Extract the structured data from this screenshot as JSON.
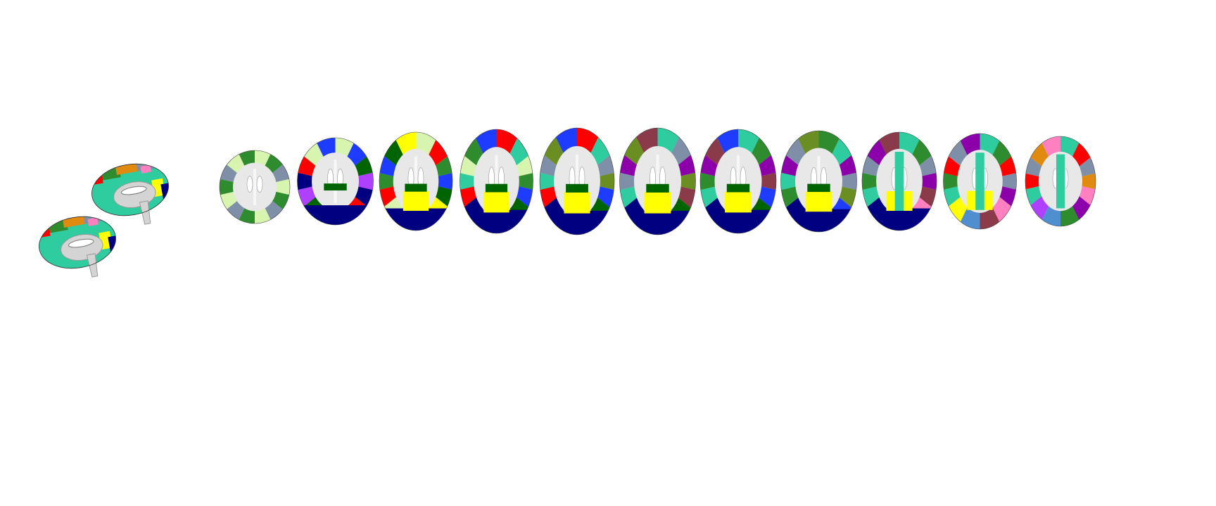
{
  "figure": {
    "background": "#ffffff",
    "brain_gray": "#d4d4d4",
    "brain_outline": "#9a9a9a",
    "atlas_palette": {
      "navy": "#000080",
      "yellow": "#ffff00",
      "teal": "#2ecc9e",
      "red": "#ff0000",
      "green": "#2e8b2e",
      "dark_green": "#006400",
      "olive": "#6b8e23",
      "slate": "#7f8fa8",
      "blue": "#1e3cff",
      "violet": "#b040ff",
      "purple": "#8b00a8",
      "maroon": "#8b3a4a",
      "light_green": "#d8f5b0",
      "orange": "#e08a10",
      "pink": "#ff80c0",
      "steel_blue": "#4f8fd0"
    },
    "sagittal_views": [
      {
        "name": "sagittal-upper"
      },
      {
        "name": "sagittal-lower"
      }
    ],
    "axial_slices": [
      {
        "name": "slice-1",
        "colors": [
          "light_green",
          "green",
          "slate"
        ]
      },
      {
        "name": "slice-2",
        "colors": [
          "light_green",
          "blue",
          "dark_green",
          "violet",
          "navy",
          "red"
        ]
      },
      {
        "name": "slice-3",
        "colors": [
          "light_green",
          "red",
          "green",
          "blue",
          "dark_green",
          "yellow",
          "violet",
          "navy"
        ]
      },
      {
        "name": "slice-4",
        "colors": [
          "red",
          "teal",
          "light_green",
          "green",
          "blue",
          "dark_green",
          "yellow",
          "violet",
          "navy"
        ]
      },
      {
        "name": "slice-5",
        "colors": [
          "red",
          "teal",
          "slate",
          "olive",
          "blue",
          "dark_green",
          "yellow",
          "violet",
          "navy"
        ]
      },
      {
        "name": "slice-6",
        "colors": [
          "teal",
          "slate",
          "purple",
          "olive",
          "maroon",
          "dark_green",
          "yellow",
          "violet",
          "navy"
        ]
      },
      {
        "name": "slice-7",
        "colors": [
          "teal",
          "green",
          "purple",
          "maroon",
          "blue",
          "dark_green",
          "yellow",
          "violet",
          "navy"
        ]
      },
      {
        "name": "slice-8",
        "colors": [
          "green",
          "teal",
          "purple",
          "slate",
          "olive",
          "blue",
          "dark_green",
          "yellow",
          "navy"
        ]
      },
      {
        "name": "slice-9",
        "colors": [
          "teal",
          "green",
          "slate",
          "purple",
          "maroon",
          "pink",
          "blue",
          "yellow",
          "navy"
        ]
      },
      {
        "name": "slice-10",
        "colors": [
          "teal",
          "green",
          "red",
          "slate",
          "purple",
          "pink",
          "maroon",
          "steel_blue",
          "yellow"
        ]
      },
      {
        "name": "slice-11",
        "colors": [
          "teal",
          "red",
          "slate",
          "orange",
          "pink",
          "purple",
          "green",
          "steel_blue",
          "violet"
        ]
      }
    ]
  }
}
